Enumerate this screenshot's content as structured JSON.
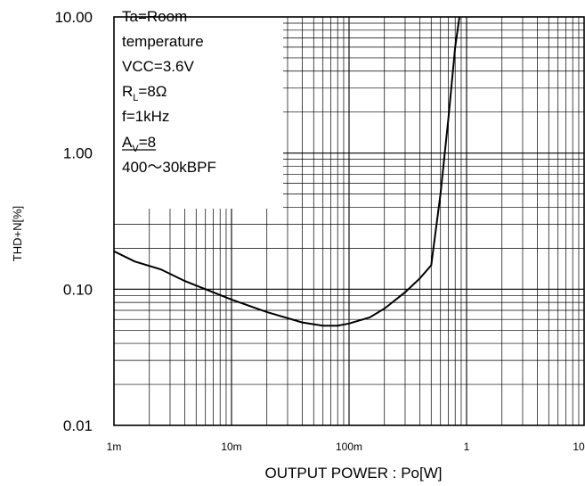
{
  "chart_data": {
    "type": "line",
    "title": "",
    "xlabel": "OUTPUT POWER : Po[W]",
    "ylabel": "THD+N[%]",
    "x_scale": "log",
    "y_scale": "log",
    "xlim": [
      0.001,
      10
    ],
    "ylim": [
      0.01,
      10
    ],
    "grid": true,
    "x_ticks": [
      {
        "value": 0.001,
        "label": "1m"
      },
      {
        "value": 0.01,
        "label": "10m"
      },
      {
        "value": 0.1,
        "label": "100m"
      },
      {
        "value": 1,
        "label": "1"
      },
      {
        "value": 10,
        "label": "10"
      }
    ],
    "y_ticks": [
      {
        "value": 10,
        "label": "10.00"
      },
      {
        "value": 1,
        "label": "1.00"
      },
      {
        "value": 0.1,
        "label": "0.10"
      },
      {
        "value": 0.01,
        "label": "0.01"
      }
    ],
    "conditions": [
      {
        "main": "Ta=Room"
      },
      {
        "main": "temperature"
      },
      {
        "main": "VCC=3.6V"
      },
      {
        "main": "R",
        "sub": "L",
        "rest": "=8Ω"
      },
      {
        "main": "f=1kHz"
      },
      {
        "main": "A",
        "sub": "V",
        "rest": "=8",
        "underline": true
      },
      {
        "main": "400〜30kBPF"
      }
    ],
    "series": [
      {
        "x": [
          0.001,
          0.0015,
          0.0025,
          0.004,
          0.006,
          0.01,
          0.02,
          0.04,
          0.06,
          0.08,
          0.1,
          0.15,
          0.2,
          0.3,
          0.4,
          0.5,
          0.6,
          0.7,
          0.8,
          0.87,
          0.92
        ],
        "y": [
          0.19,
          0.16,
          0.14,
          0.115,
          0.1,
          0.084,
          0.068,
          0.057,
          0.054,
          0.054,
          0.056,
          0.062,
          0.072,
          0.095,
          0.12,
          0.15,
          0.5,
          1.8,
          6.0,
          10.0,
          13.0
        ]
      }
    ]
  }
}
